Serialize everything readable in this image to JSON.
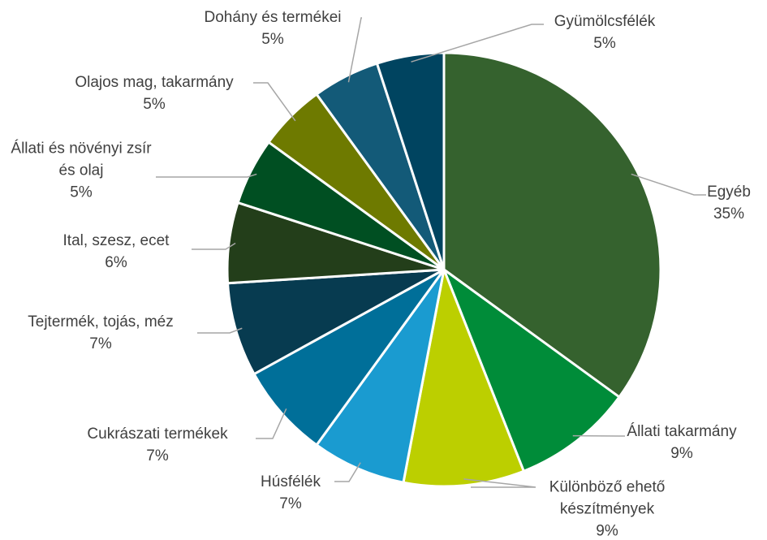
{
  "chart_data": {
    "type": "pie",
    "categories": [
      "Egyéb",
      "Állati takarmány",
      "Különböző ehető készítmények",
      "Húsfélék",
      "Cukrászati termékek",
      "Tejtermék, tojás, méz",
      "Ital, szesz, ecet",
      "Állati és növényi zsír és olaj",
      "Olajos mag, takarmány",
      "Dohány és termékei",
      "Gyümölcsfélék"
    ],
    "values": [
      35,
      9,
      9,
      7,
      7,
      7,
      6,
      5,
      5,
      5,
      5
    ],
    "value_labels": [
      "35%",
      "9%",
      "9%",
      "7%",
      "7%",
      "7%",
      "6%",
      "5%",
      "5%",
      "5%",
      "5%"
    ],
    "colors": [
      "#35622e",
      "#008c39",
      "#bccf00",
      "#1a9bd0",
      "#006f99",
      "#073b50",
      "#233e1a",
      "#004f22",
      "#6e7a00",
      "#135a78",
      "#004460"
    ]
  }
}
